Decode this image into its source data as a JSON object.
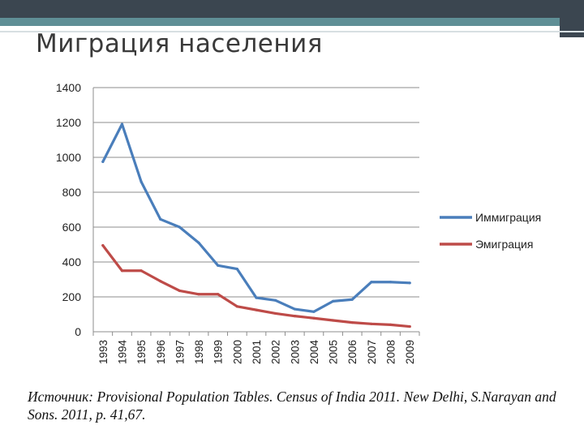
{
  "slide": {
    "title": "Миграция населения",
    "source": "Источник: Provisional Population Tables. Census of India 2011. New Delhi, S.Narayan and Sons. 2011, p. 41,67."
  },
  "colors": {
    "immigration": "#4a7ebb",
    "emigration": "#be4b48",
    "grid": "#8c8c8c",
    "header_dark": "#3b4650",
    "header_teal": "#5f8f96"
  },
  "chart_data": {
    "type": "line",
    "title": "",
    "xlabel": "",
    "ylabel": "",
    "categories": [
      "1993",
      "1994",
      "1995",
      "1996",
      "1997",
      "1998",
      "1999",
      "2000",
      "2001",
      "2002",
      "2003",
      "2004",
      "2005",
      "2006",
      "2007",
      "2008",
      "2009"
    ],
    "ylim": [
      0,
      1400
    ],
    "yticks": [
      0,
      200,
      400,
      600,
      800,
      1000,
      1200,
      1400
    ],
    "grid": true,
    "legend": "right",
    "series": [
      {
        "name": "Иммиграция",
        "color": "#4a7ebb",
        "values": [
          975,
          1190,
          860,
          645,
          600,
          510,
          380,
          360,
          195,
          180,
          130,
          115,
          175,
          185,
          285,
          285,
          280
        ]
      },
      {
        "name": "Эмиграция",
        "color": "#be4b48",
        "values": [
          495,
          350,
          350,
          290,
          235,
          215,
          215,
          145,
          125,
          105,
          90,
          78,
          65,
          53,
          45,
          40,
          30
        ]
      }
    ]
  }
}
